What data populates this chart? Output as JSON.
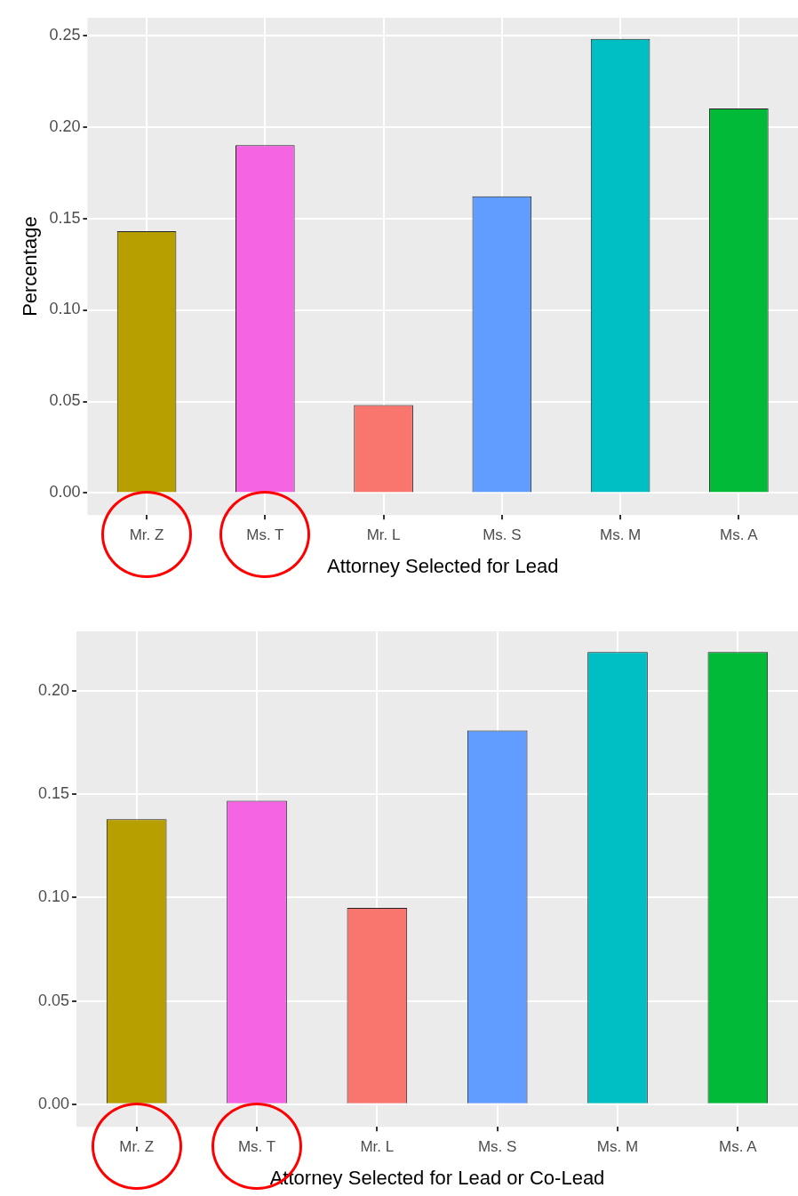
{
  "chart_data": [
    {
      "type": "bar",
      "xlabel": "Attorney Selected for Lead",
      "ylabel": "Percentage",
      "categories": [
        "Mr. Z",
        "Ms. T",
        "Mr. L",
        "Ms. S",
        "Ms. M",
        "Ms. A"
      ],
      "values": [
        0.143,
        0.19,
        0.048,
        0.162,
        0.248,
        0.21
      ],
      "colors": [
        "#b79f00",
        "#f564e3",
        "#f8766d",
        "#619cff",
        "#00bfc4",
        "#00ba38"
      ],
      "ylim": [
        -0.012,
        0.2595
      ],
      "yticks": [
        {
          "value": 0,
          "label": "0.00"
        },
        {
          "value": 0.05,
          "label": "0.05"
        },
        {
          "value": 0.1,
          "label": "0.10"
        },
        {
          "value": 0.15,
          "label": "0.15"
        },
        {
          "value": 0.2,
          "label": "0.20"
        },
        {
          "value": 0.25,
          "label": "0.25"
        }
      ],
      "grid": true
    },
    {
      "type": "bar",
      "xlabel": "Attorney Selected for Lead or Co-Lead",
      "categories": [
        "Mr. Z",
        "Ms. T",
        "Mr. L",
        "Ms. S",
        "Ms. M",
        "Ms. A"
      ],
      "values": [
        0.138,
        0.147,
        0.095,
        0.181,
        0.219,
        0.219
      ],
      "colors": [
        "#b79f00",
        "#f564e3",
        "#f8766d",
        "#619cff",
        "#00bfc4",
        "#00ba38"
      ],
      "ylim": [
        -0.011,
        0.229
      ],
      "yticks": [
        {
          "value": 0,
          "label": "0.00"
        },
        {
          "value": 0.05,
          "label": "0.05"
        },
        {
          "value": 0.1,
          "label": "0.10"
        },
        {
          "value": 0.15,
          "label": "0.15"
        },
        {
          "value": 0.2,
          "label": "0.20"
        }
      ],
      "grid": true
    }
  ]
}
